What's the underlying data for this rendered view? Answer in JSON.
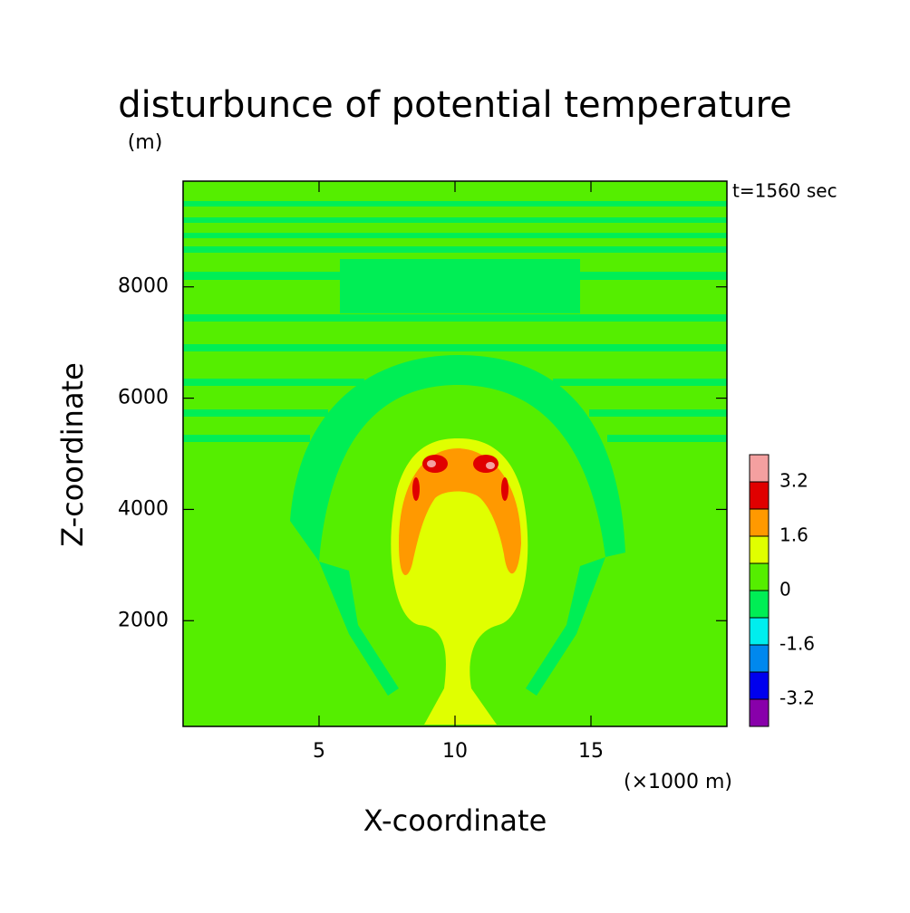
{
  "chart_data": {
    "type": "contour",
    "title": "disturbunce of potential temperature",
    "y_unit": "(m)",
    "annotation": "t=1560 sec",
    "x_label": "X-coordinate",
    "x_unit": "(×1000 m)",
    "y_label": "Z-coordinate",
    "xlim": [
      0,
      20
    ],
    "xticks": [
      5,
      10,
      15
    ],
    "ylim": [
      100,
      9900
    ],
    "yticks": [
      2000,
      4000,
      6000,
      8000
    ],
    "colorbar": {
      "clim": [
        -4,
        4
      ],
      "ticks": [
        -3.2,
        -1.6,
        0,
        1.6,
        3.2
      ],
      "colors": [
        "#8800aa",
        "#0000ee",
        "#0088ee",
        "#00eeee",
        "#00ee55",
        "#55ee00",
        "#e0ff00",
        "#ff9900",
        "#e00000",
        "#f4a0a0"
      ]
    }
  }
}
